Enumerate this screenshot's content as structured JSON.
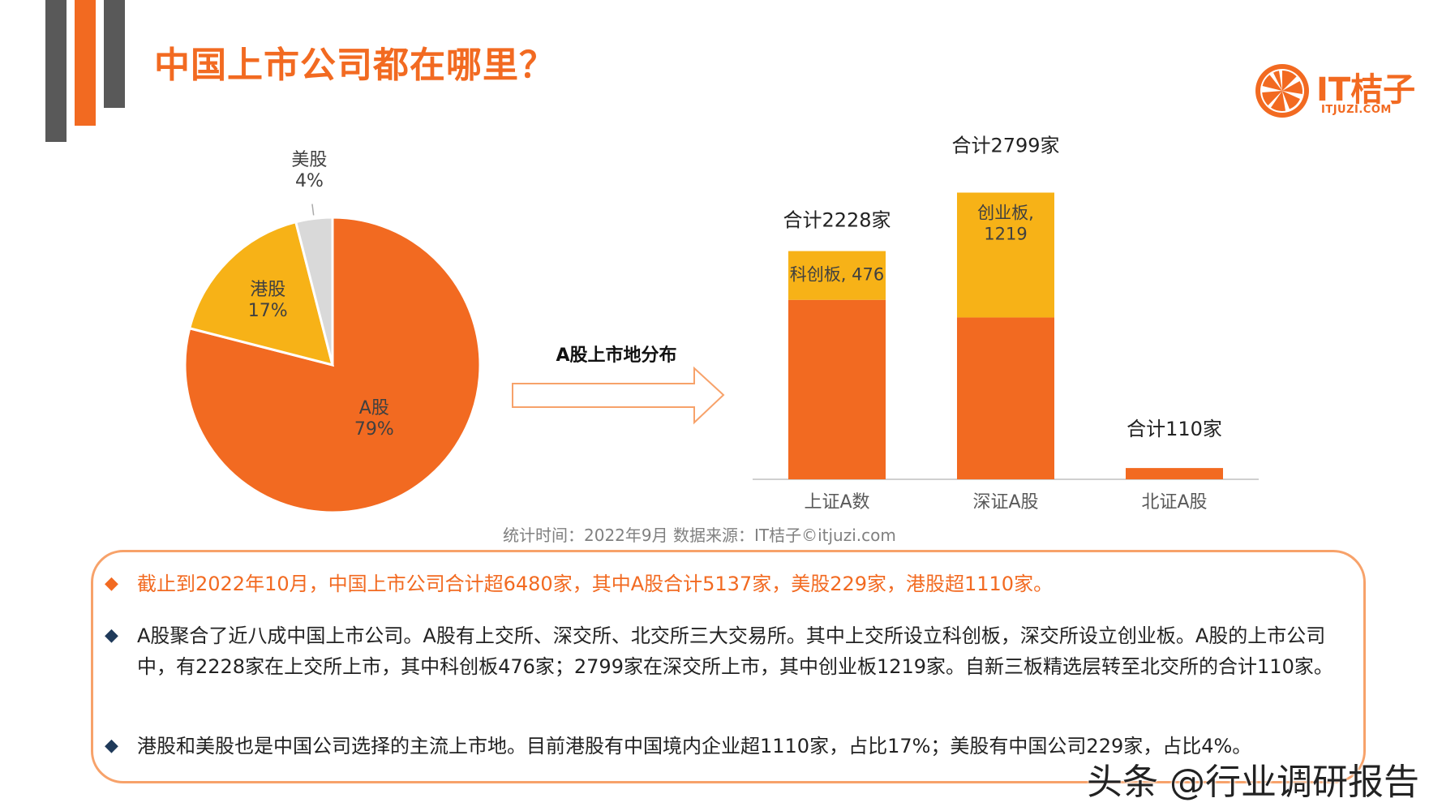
{
  "page": {
    "title": "中国上市公司都在哪里？",
    "logo": {
      "text": "IT桔子",
      "sub": "ITJUZI.COM"
    },
    "source": "统计时间：2022年9月  数据来源：IT桔子©itjuzi.com",
    "arrow_label": "A股上市地分布",
    "watermark": "头条 @行业调研报告",
    "notes": [
      "截止到2022年10月，中国上市公司合计超6480家，其中A股合计5137家，美股229家，港股超1110家。",
      "A股聚合了近八成中国上市公司。A股有上交所、深交所、北交所三大交易所。其中上交所设立科创板，深交所设立创业板。A股的上市公司中，有2228家在上交所上市，其中科创板476家；2799家在深交所上市，其中创业板1219家。自新三板精选层转至北交所的合计110家。",
      "港股和美股也是中国公司选择的主流上市地。目前港股有中国境内企业超1110家，占比17%；美股有中国公司229家，占比4%。"
    ],
    "colors": {
      "orange": "#F26A21",
      "yellow": "#F7B217",
      "gray": "#D9D9D9",
      "dark": "#595959"
    }
  },
  "chart_data": [
    {
      "type": "pie",
      "slices": [
        {
          "label": "A股",
          "percent_label": "79%",
          "value": 79,
          "color": "#F26A21"
        },
        {
          "label": "港股",
          "percent_label": "17%",
          "value": 17,
          "color": "#F7B217"
        },
        {
          "label": "美股",
          "percent_label": "4%",
          "value": 4,
          "color": "#D9D9D9"
        }
      ]
    },
    {
      "type": "bar",
      "stacked": true,
      "categories": [
        "上证A数",
        "深证A股",
        "北证A股"
      ],
      "totals": [
        2228,
        2799,
        110
      ],
      "total_labels": [
        "合计2228家",
        "合计2799家",
        "合计110家"
      ],
      "series": [
        {
          "values": [
            1752,
            1580,
            110
          ],
          "color": "#F26A21"
        },
        {
          "values": [
            476,
            1219,
            0
          ],
          "color": "#F7B217",
          "labels": [
            "科创板, 476",
            "创业板, 1219",
            ""
          ]
        }
      ]
    }
  ]
}
